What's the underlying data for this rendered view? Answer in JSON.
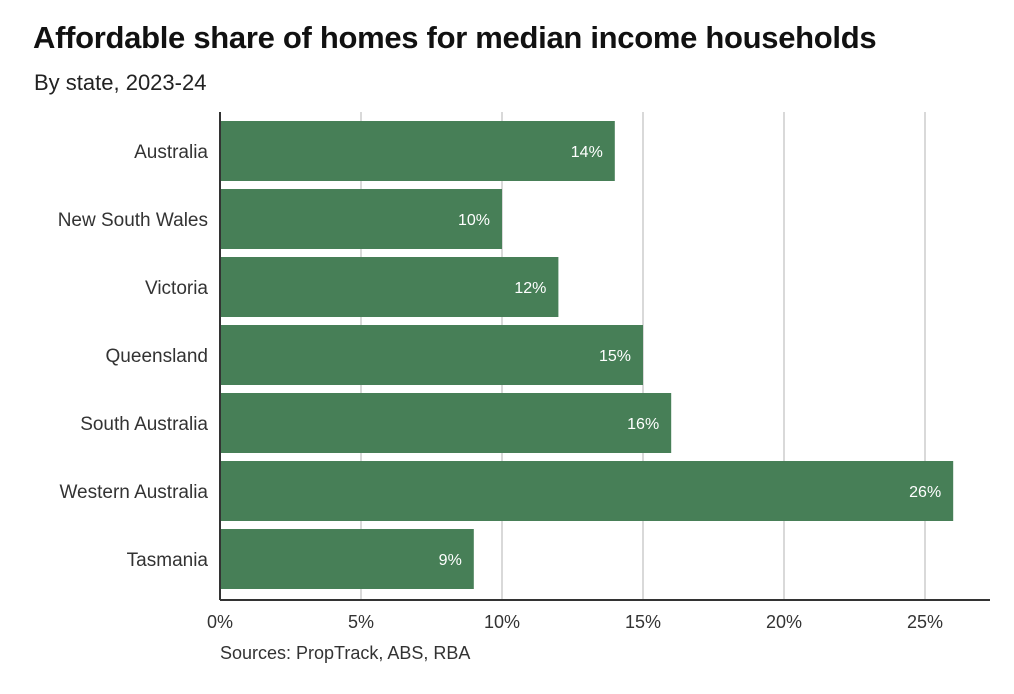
{
  "title": "Affordable share of homes for median income households",
  "subtitle": "By state, 2023-24",
  "source": "Sources: PropTrack, ABS, RBA",
  "colors": {
    "bar": "#477f57",
    "grid": "#d9d9d9",
    "axis": "#333333"
  },
  "chart_data": {
    "type": "bar",
    "orientation": "horizontal",
    "categories": [
      "Australia",
      "New South Wales",
      "Victoria",
      "Queensland",
      "South Australia",
      "Western Australia",
      "Tasmania"
    ],
    "values": [
      14,
      10,
      12,
      15,
      16,
      26,
      9
    ],
    "data_labels": [
      "14%",
      "10%",
      "12%",
      "15%",
      "16%",
      "26%",
      "9%"
    ],
    "xlim": [
      0,
      27
    ],
    "xticks": [
      0,
      5,
      10,
      15,
      20,
      25
    ],
    "xtick_labels": [
      "0%",
      "5%",
      "10%",
      "15%",
      "20%",
      "25%"
    ],
    "grid": true,
    "legend": "none"
  }
}
